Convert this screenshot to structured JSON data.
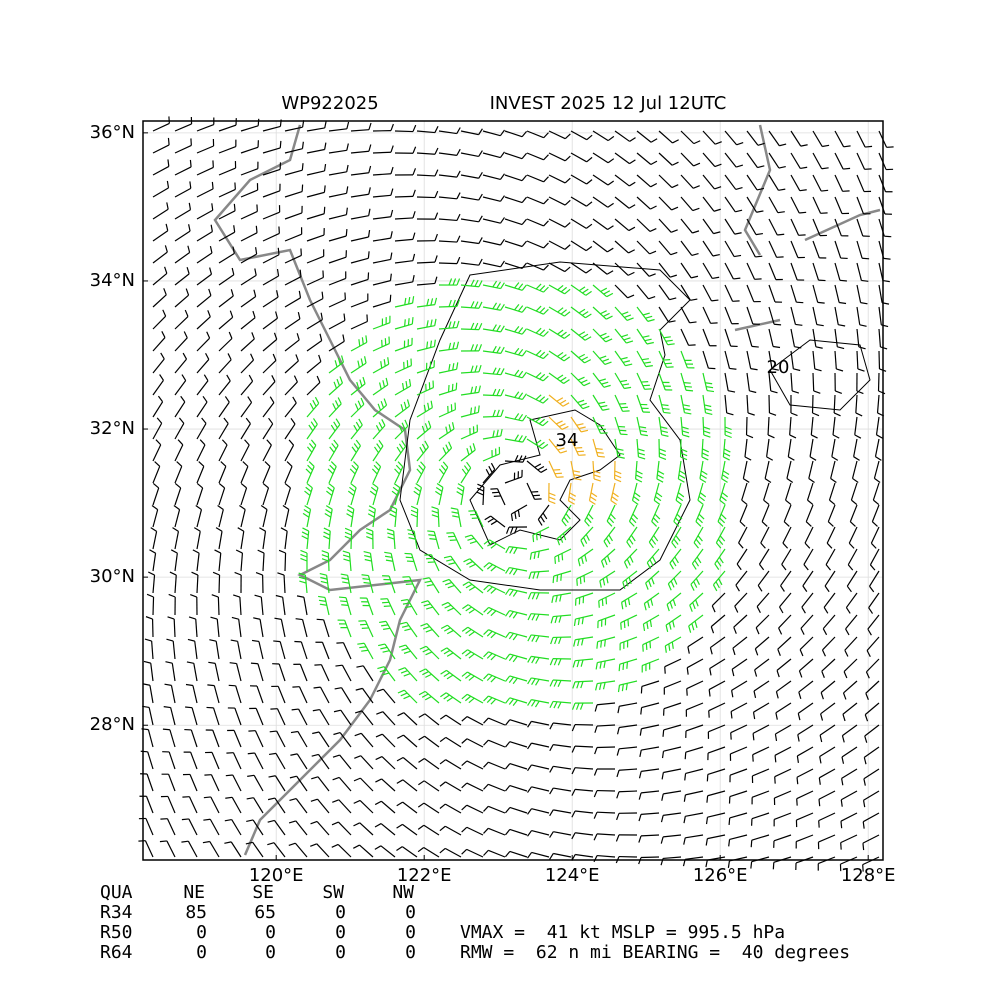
{
  "map": {
    "title_left": "WP922025",
    "title_right": "INVEST 2025 12 Jul 12UTC",
    "xlim": [
      118.2,
      128.2
    ],
    "ylim": [
      26.18,
      36.16
    ],
    "xticks": [
      {
        "value": 120,
        "label": "120°E"
      },
      {
        "value": 122,
        "label": "122°E"
      },
      {
        "value": 124,
        "label": "124°E"
      },
      {
        "value": 126,
        "label": "126°E"
      },
      {
        "value": 128,
        "label": "128°E"
      }
    ],
    "yticks": [
      {
        "value": 28,
        "label": "28°N"
      },
      {
        "value": 30,
        "label": "30°N"
      },
      {
        "value": 32,
        "label": "32°N"
      },
      {
        "value": 34,
        "label": "34°N"
      },
      {
        "value": 36,
        "label": "36°N"
      }
    ],
    "contour_labels": [
      "20",
      "34"
    ]
  },
  "radii_table": {
    "header": [
      "QUA",
      "NE",
      "SE",
      "SW",
      "NW"
    ],
    "rows": [
      [
        "R34",
        85,
        65,
        0,
        0
      ],
      [
        "R50",
        0,
        0,
        0,
        0
      ],
      [
        "R64",
        0,
        0,
        0,
        0
      ]
    ]
  },
  "summary": [
    "VMAX =  41 kt MSLP = 995.5 hPa",
    "RMW =  62 n mi BEARING =  40 degrees"
  ]
}
